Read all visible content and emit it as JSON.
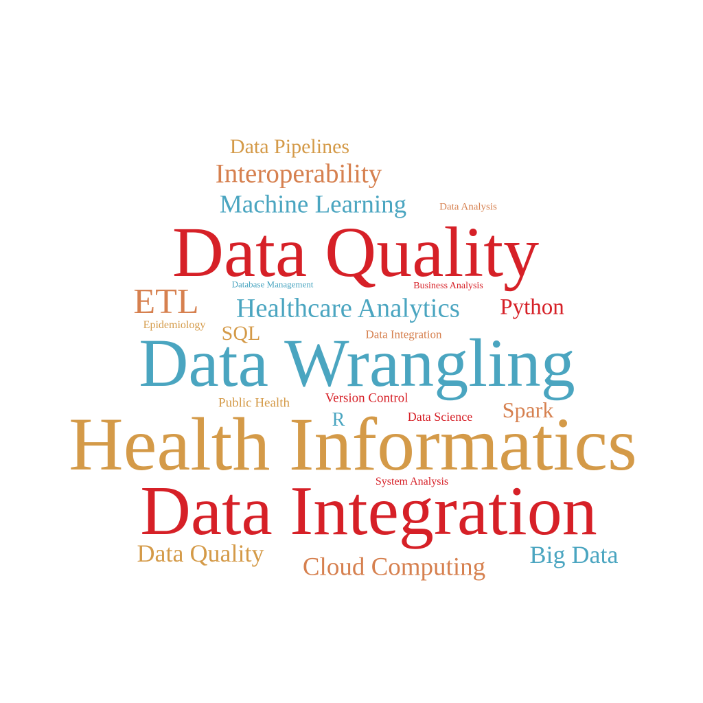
{
  "colors": {
    "red": "#d62027",
    "blue": "#4aa5c0",
    "gold": "#d49a48",
    "orange": "#d6804f"
  },
  "words": [
    {
      "text": "Data Pipelines",
      "color": "#d49a48"
    },
    {
      "text": "Interoperability",
      "color": "#d6804f"
    },
    {
      "text": "Machine Learning",
      "color": "#4aa5c0"
    },
    {
      "text": "Data Analysis",
      "color": "#d6804f"
    },
    {
      "text": "Data Quality",
      "color": "#d62027"
    },
    {
      "text": "Database Management",
      "color": "#4aa5c0"
    },
    {
      "text": "Business Analysis",
      "color": "#d62027"
    },
    {
      "text": "ETL",
      "color": "#d6804f"
    },
    {
      "text": "Healthcare Analytics",
      "color": "#4aa5c0"
    },
    {
      "text": "Python",
      "color": "#d62027"
    },
    {
      "text": "Epidemiology",
      "color": "#d49a48"
    },
    {
      "text": "SQL",
      "color": "#d49a48"
    },
    {
      "text": "Data Integration",
      "color": "#d6804f"
    },
    {
      "text": "Data Wrangling",
      "color": "#4aa5c0"
    },
    {
      "text": "Version Control",
      "color": "#d62027"
    },
    {
      "text": "Public Health",
      "color": "#d49a48"
    },
    {
      "text": "Spark",
      "color": "#d6804f"
    },
    {
      "text": "Data Science",
      "color": "#d62027"
    },
    {
      "text": "R",
      "color": "#4aa5c0"
    },
    {
      "text": "Health Informatics",
      "color": "#d49a48"
    },
    {
      "text": "System Analysis",
      "color": "#d62027"
    },
    {
      "text": "Data Integration",
      "color": "#d62027"
    },
    {
      "text": "Data Quality",
      "color": "#d49a48"
    },
    {
      "text": "Big Data",
      "color": "#4aa5c0"
    },
    {
      "text": "Cloud Computing",
      "color": "#d6804f"
    }
  ]
}
